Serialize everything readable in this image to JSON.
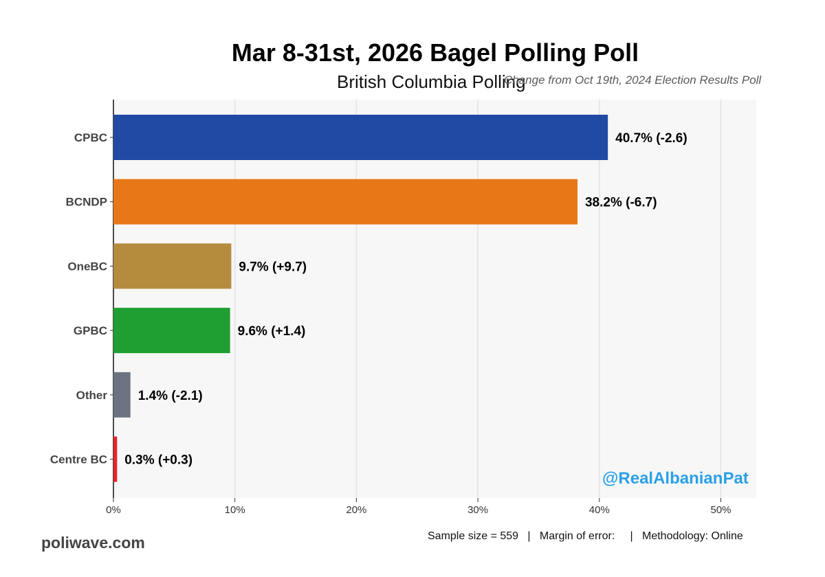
{
  "chart_data": {
    "type": "bar",
    "orientation": "horizontal",
    "title": "Mar 8-31st, 2026 Bagel Polling Poll",
    "subtitle": "British Columbia Polling",
    "note": "Change from Oct 19th, 2024 Election Results Poll",
    "categories": [
      "CPBC",
      "BCNDP",
      "OneBC",
      "GPBC",
      "Other",
      "Centre BC"
    ],
    "values": [
      40.7,
      38.2,
      9.7,
      9.6,
      1.4,
      0.3
    ],
    "changes": [
      -2.6,
      -6.7,
      9.7,
      1.4,
      -2.1,
      0.3
    ],
    "data_labels": [
      "40.7% (-2.6)",
      "38.2% (-6.7)",
      "9.7% (+9.7)",
      "9.6% (+1.4)",
      "1.4% (-2.1)",
      "0.3% (+0.3)"
    ],
    "colors": [
      "#214aa5",
      "#e87817",
      "#b58b3e",
      "#1f9f32",
      "#6b7280",
      "#e8202a"
    ],
    "xlim": [
      0,
      53
    ],
    "xticks": [
      0,
      10,
      20,
      30,
      40,
      50
    ],
    "xtick_labels": [
      "0%",
      "10%",
      "20%",
      "30%",
      "40%",
      "50%"
    ],
    "xlabel": "",
    "ylabel": "",
    "grid": true
  },
  "watermark": "@RealAlbanianPat",
  "site": "poliwave.com",
  "footer": "Sample size = 559   |   Margin of error:     |   Methodology: Online",
  "colors": {
    "plot_background": "#f7f7f7",
    "watermark": "#2aa0e8",
    "grid": "#e2e2e2"
  }
}
